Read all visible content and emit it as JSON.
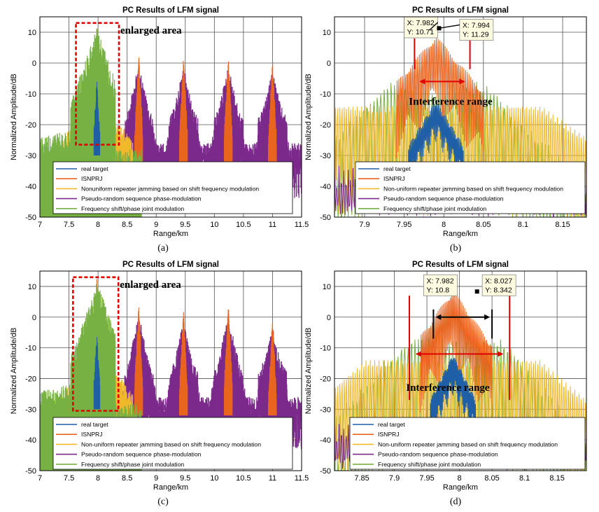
{
  "figure": {
    "captions": [
      "(a)",
      "(b)",
      "(c)",
      "(d)"
    ]
  },
  "colors": {
    "real_target": "#1f5fa8",
    "isnprj": "#e8641f",
    "nonuniform": "#f0b92c",
    "pseudo": "#7b2a8c",
    "joint": "#77b043",
    "annotation_red": "#e00000",
    "grid": "#555555"
  },
  "chart_data": [
    {
      "id": "a",
      "type": "line",
      "title": "PC Results of LFM signal",
      "xlabel": "Range/km",
      "ylabel": "Normalized Amplitude/dB",
      "xlim": [
        7,
        11.5
      ],
      "ylim": [
        -50,
        15
      ],
      "xticks": [
        "7",
        "7.5",
        "8",
        "8.5",
        "9",
        "9.5",
        "10",
        "10.5",
        "11",
        "11.5"
      ],
      "yticks": [
        "10",
        "0",
        "-10",
        "-20",
        "-30",
        "-40",
        "-50"
      ],
      "legend": [
        "real target",
        "ISNPRJ",
        "Nonuniform repeater jamming based on shift frequency modulation",
        "Pseudo-random sequence phase-modulation",
        "Frequency shift/phase joint modulation"
      ],
      "peaks_km": [
        7.98,
        8.7,
        9.47,
        10.24,
        11.0
      ],
      "peak_levels_db": [
        12,
        3,
        2,
        2.5,
        1
      ],
      "annotation": "enlarged area",
      "enlarged_range_km": [
        7.62,
        8.36
      ],
      "enlarged_range_db": [
        -26.5,
        13
      ]
    },
    {
      "id": "b",
      "type": "line",
      "title": "PC Results of LFM signal",
      "xlabel": "Range/km",
      "ylabel": "Normalized Amplitude/dB",
      "xlim": [
        7.862,
        8.18
      ],
      "ylim": [
        -50,
        15
      ],
      "xticks": [
        "7.9",
        "7.95",
        "8",
        "8.05",
        "8.1",
        "8.15"
      ],
      "yticks": [
        "10",
        "0",
        "-10",
        "-20",
        "-30",
        "-40",
        "-50"
      ],
      "legend": [
        "real target",
        "ISNPRJ",
        "Non-uniform repeater jamming based on shift frequency modulation",
        "Pseudo-random sequence phase-modulation",
        "Frequency shift/phase joint modulation"
      ],
      "datatips": [
        {
          "x_label": "X: 7.982",
          "y_label": "Y: 10.71",
          "x": 7.982,
          "y": 10.71
        },
        {
          "x_label": "X: 7.994",
          "y_label": "Y: 11.29",
          "x": 7.994,
          "y": 11.29
        }
      ],
      "annotation": "Interference range",
      "interference_range_km": [
        7.963,
        8.033
      ]
    },
    {
      "id": "c",
      "type": "line",
      "title": "PC Results of LFM signal",
      "xlabel": "Range/km",
      "ylabel": "Normalized Amplitude/dB",
      "xlim": [
        7,
        11.5
      ],
      "ylim": [
        -50,
        15
      ],
      "xticks": [
        "7",
        "7.5",
        "8",
        "8.5",
        "9",
        "9.5",
        "10",
        "10.5",
        "11",
        "11.5"
      ],
      "yticks": [
        "10",
        "0",
        "-10",
        "-20",
        "-30",
        "-40",
        "-50"
      ],
      "legend": [
        "real target",
        "ISNPRJ",
        "Non-uniform repeater jamming based on shift frequency modulation",
        "Pseudo-random sequence phase-modulation",
        "Frequency shift/phase joint modulation"
      ],
      "peaks_km": [
        7.98,
        8.7,
        9.47,
        10.24,
        11.0
      ],
      "peak_levels_db": [
        12,
        4,
        2,
        4,
        0
      ],
      "annotation": "enlarged area",
      "enlarged_range_km": [
        7.57,
        8.35
      ],
      "enlarged_range_db": [
        -30.5,
        13
      ]
    },
    {
      "id": "d",
      "type": "line",
      "title": "PC Results of LFM signal",
      "xlabel": "Range/km",
      "ylabel": "Normalized Amplitude/dB",
      "xlim": [
        7.808,
        8.195
      ],
      "ylim": [
        -50,
        15
      ],
      "xticks": [
        "7.85",
        "7.9",
        "7.95",
        "8",
        "8.05",
        "8.1",
        "8.15"
      ],
      "yticks": [
        "10",
        "0",
        "-10",
        "-20",
        "-30",
        "-40",
        "-50"
      ],
      "legend": [
        "real target",
        "ISNPRJ",
        "Non-uniform repeater jamming based on shift frequency modulation",
        "Pseudo-random sequence phase-modulation",
        "Frequency shift/phase joint modulation"
      ],
      "datatips": [
        {
          "x_label": "X: 7.982",
          "y_label": "Y: 10.8",
          "x": 7.982,
          "y": 10.8
        },
        {
          "x_label": "X: 8.027",
          "y_label": "Y: 8.342",
          "x": 8.027,
          "y": 8.342
        }
      ],
      "annotation": "Interference range",
      "interference_range_km": [
        7.923,
        8.077
      ],
      "inner_range_km": [
        7.96,
        8.05
      ]
    }
  ]
}
